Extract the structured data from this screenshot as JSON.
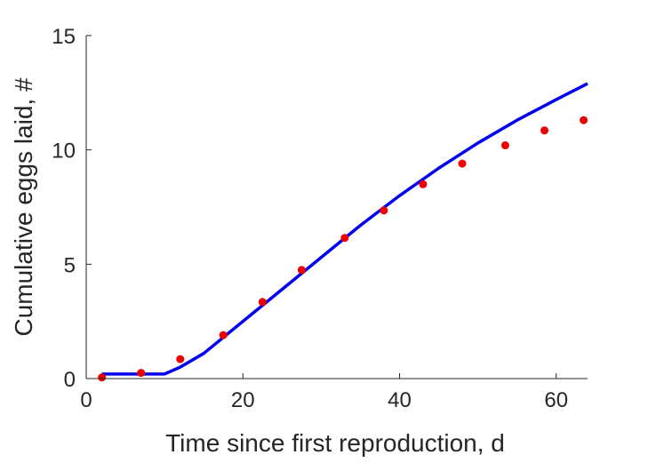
{
  "chart_data": {
    "type": "scatter",
    "title": "",
    "xlabel": "Time since first reproduction, d",
    "ylabel": "Cumulative eggs laid, #",
    "xlim": [
      0,
      64
    ],
    "ylim": [
      0,
      15
    ],
    "xticks": [
      0,
      20,
      40,
      60
    ],
    "xtick_labels": [
      "0",
      "20",
      "40",
      "60"
    ],
    "yticks": [
      0,
      5,
      10,
      15
    ],
    "ytick_labels": [
      "0",
      "5",
      "10",
      "15"
    ],
    "grid": false,
    "box": "left-bottom axes only",
    "series": [
      {
        "kind": "line",
        "color": "#0000ee",
        "x": [
          2,
          10,
          12,
          15,
          20,
          25,
          30,
          35,
          40,
          45,
          50,
          55,
          60,
          64
        ],
        "y": [
          0.2,
          0.2,
          0.5,
          1.1,
          2.5,
          3.9,
          5.3,
          6.7,
          8.0,
          9.2,
          10.3,
          11.3,
          12.2,
          12.9
        ]
      },
      {
        "kind": "scatter",
        "color": "#ee0000",
        "x": [
          2,
          7,
          12,
          17.5,
          22.5,
          27.5,
          33,
          38,
          43,
          48,
          53.5,
          58.5,
          63.5
        ],
        "y": [
          0.05,
          0.25,
          0.85,
          1.9,
          3.35,
          4.75,
          6.15,
          7.35,
          8.5,
          9.4,
          10.2,
          10.85,
          11.3
        ]
      }
    ]
  }
}
